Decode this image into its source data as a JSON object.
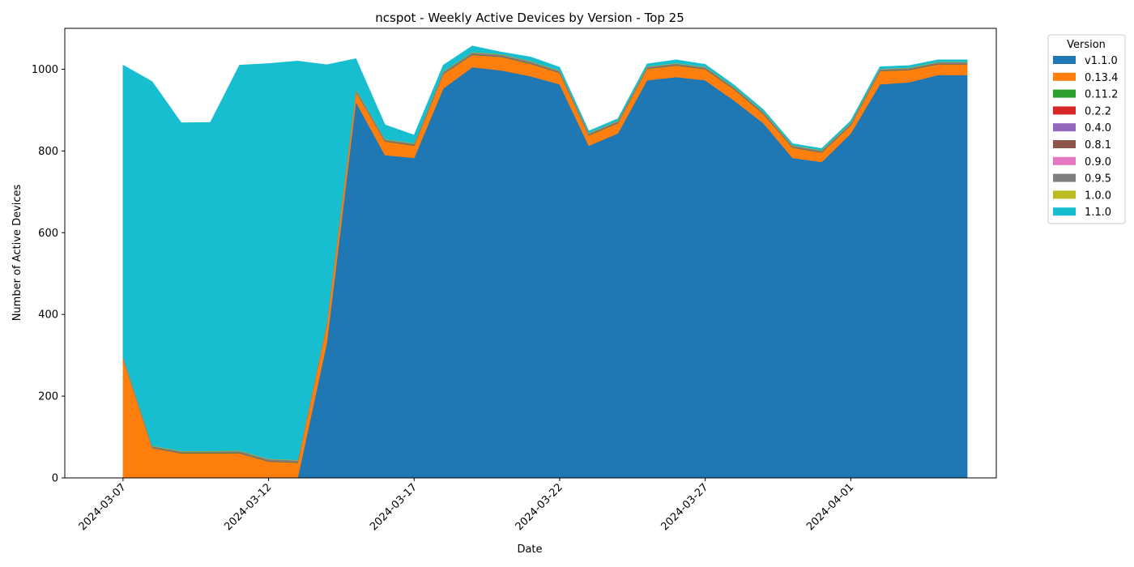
{
  "chart_data": {
    "type": "area",
    "stacked": true,
    "title": "ncspot - Weekly Active Devices by Version - Top 25",
    "xlabel": "Date",
    "ylabel": "Number of Active Devices",
    "ylim": [
      0,
      1100
    ],
    "yticks": [
      0,
      200,
      400,
      600,
      800,
      1000
    ],
    "xlim": [
      "2024-03-05",
      "2024-04-06"
    ],
    "xticks": [
      "2024-03-07",
      "2024-03-12",
      "2024-03-17",
      "2024-03-22",
      "2024-03-27",
      "2024-04-01"
    ],
    "grid": false,
    "legend": {
      "title": "Version",
      "placement": "outside-right"
    },
    "x": [
      "2024-03-07",
      "2024-03-08",
      "2024-03-09",
      "2024-03-10",
      "2024-03-11",
      "2024-03-12",
      "2024-03-13",
      "2024-03-14",
      "2024-03-15",
      "2024-03-16",
      "2024-03-17",
      "2024-03-18",
      "2024-03-19",
      "2024-03-20",
      "2024-03-21",
      "2024-03-22",
      "2024-03-23",
      "2024-03-24",
      "2024-03-25",
      "2024-03-26",
      "2024-03-27",
      "2024-03-28",
      "2024-03-29",
      "2024-03-30",
      "2024-03-31",
      "2024-04-01",
      "2024-04-02",
      "2024-04-03",
      "2024-04-04",
      "2024-04-05"
    ],
    "series": [
      {
        "name": "v1.1.0",
        "color": "#1f77b4",
        "values": [
          0,
          0,
          0,
          0,
          0,
          0,
          0,
          330,
          920,
          790,
          783,
          953,
          1005,
          997,
          983,
          963,
          813,
          843,
          973,
          981,
          973,
          923,
          868,
          783,
          773,
          843,
          963,
          968,
          986,
          986
        ]
      },
      {
        "name": "0.13.4",
        "color": "#ff7f0e",
        "values": [
          293,
          73,
          60,
          60,
          60,
          40,
          37,
          45,
          25,
          33,
          30,
          35,
          30,
          33,
          30,
          28,
          25,
          25,
          28,
          28,
          27,
          27,
          22,
          25,
          23,
          20,
          32,
          30,
          26,
          26
        ]
      },
      {
        "name": "0.11.2",
        "color": "#2ca02c",
        "values": [
          1,
          1,
          1,
          1,
          1,
          1,
          1,
          1,
          1,
          1,
          1,
          1,
          1,
          1,
          1,
          1,
          1,
          1,
          1,
          1,
          1,
          1,
          1,
          1,
          1,
          1,
          1,
          1,
          1,
          1
        ]
      },
      {
        "name": "0.2.2",
        "color": "#d62728",
        "values": [
          0,
          0,
          0,
          0,
          0,
          0,
          0,
          0,
          0,
          0,
          0,
          0,
          0,
          0,
          0,
          0,
          0,
          0,
          0,
          0,
          0,
          0,
          0,
          0,
          0,
          0,
          0,
          0,
          0,
          0
        ]
      },
      {
        "name": "0.4.0",
        "color": "#9467bd",
        "values": [
          0,
          0,
          0,
          0,
          0,
          0,
          0,
          0,
          0,
          0,
          0,
          0,
          0,
          0,
          0,
          0,
          0,
          0,
          0,
          0,
          0,
          0,
          0,
          0,
          0,
          0,
          0,
          0,
          0,
          0
        ]
      },
      {
        "name": "0.8.1",
        "color": "#8c564b",
        "values": [
          1,
          1,
          1,
          1,
          1,
          1,
          1,
          1,
          1,
          1,
          1,
          1,
          1,
          1,
          1,
          1,
          1,
          1,
          1,
          1,
          1,
          1,
          1,
          1,
          1,
          1,
          1,
          1,
          1,
          1
        ]
      },
      {
        "name": "0.9.0",
        "color": "#e377c2",
        "values": [
          0,
          0,
          0,
          0,
          0,
          0,
          0,
          0,
          0,
          0,
          0,
          0,
          0,
          0,
          0,
          0,
          0,
          0,
          0,
          0,
          0,
          0,
          0,
          0,
          0,
          0,
          0,
          0,
          0,
          0
        ]
      },
      {
        "name": "0.9.5",
        "color": "#7f7f7f",
        "values": [
          2,
          3,
          3,
          3,
          4,
          4,
          4,
          3,
          3,
          3,
          3,
          4,
          4,
          4,
          4,
          3,
          3,
          3,
          3,
          3,
          3,
          3,
          3,
          3,
          3,
          3,
          3,
          3,
          3,
          3
        ]
      },
      {
        "name": "1.0.0",
        "color": "#bcbd22",
        "values": [
          1,
          1,
          1,
          1,
          1,
          1,
          1,
          1,
          1,
          1,
          1,
          1,
          1,
          1,
          1,
          1,
          1,
          1,
          1,
          1,
          1,
          1,
          1,
          1,
          1,
          1,
          1,
          1,
          1,
          1
        ]
      },
      {
        "name": "1.1.0",
        "color": "#17becf",
        "values": [
          712,
          891,
          803,
          804,
          943,
          967,
          976,
          630,
          75,
          35,
          20,
          15,
          15,
          5,
          10,
          8,
          5,
          5,
          6,
          8,
          6,
          5,
          5,
          4,
          4,
          5,
          5,
          5,
          5,
          5
        ]
      }
    ]
  }
}
